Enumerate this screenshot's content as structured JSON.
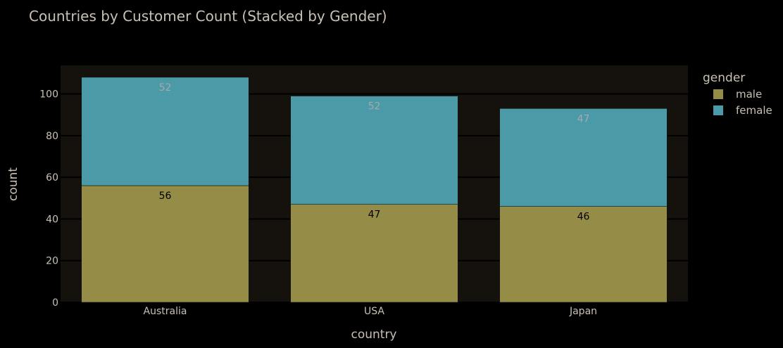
{
  "chart_data": {
    "type": "bar",
    "barmode": "stack",
    "title": "Countries by Customer Count (Stacked by Gender)",
    "xlabel": "country",
    "ylabel": "count",
    "categories": [
      "Australia",
      "USA",
      "Japan"
    ],
    "series": [
      {
        "name": "male",
        "values": [
          56,
          47,
          46
        ],
        "color": "#948c47"
      },
      {
        "name": "female",
        "values": [
          52,
          52,
          47
        ],
        "color": "#4a9aa8"
      }
    ],
    "ylim": [
      0,
      113.7
    ],
    "yticks": [
      0,
      20,
      40,
      60,
      80,
      100
    ],
    "grid": true,
    "legend": {
      "title": "gender",
      "placement": "top-right"
    },
    "colors": {
      "page_background": "#000000",
      "plot_background": "#15120e",
      "gridline": "#000000",
      "text": "#c8c0b4",
      "male_label": "#000000",
      "female_label": "#a8a8a8"
    }
  }
}
